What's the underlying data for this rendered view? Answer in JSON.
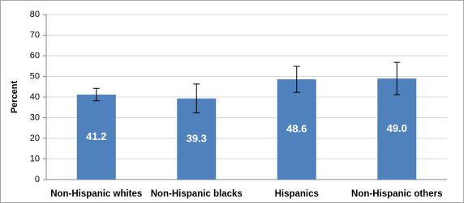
{
  "chart_data": {
    "type": "bar",
    "categories": [
      "Non-Hispanic whites",
      "Non-Hispanic blacks",
      "Hispanics",
      "Non-Hispanic others"
    ],
    "values": [
      41.2,
      39.3,
      48.6,
      49.0
    ],
    "value_labels": [
      "41.2",
      "39.3",
      "48.6",
      "49.0"
    ],
    "errors": [
      3,
      7,
      6.3,
      7.8
    ],
    "color": "#4f81bd",
    "y_label": "Percent",
    "ylim": [
      0,
      80
    ],
    "yticks": [
      0,
      10,
      20,
      30,
      40,
      50,
      60,
      70,
      80
    ],
    "grid": true
  }
}
